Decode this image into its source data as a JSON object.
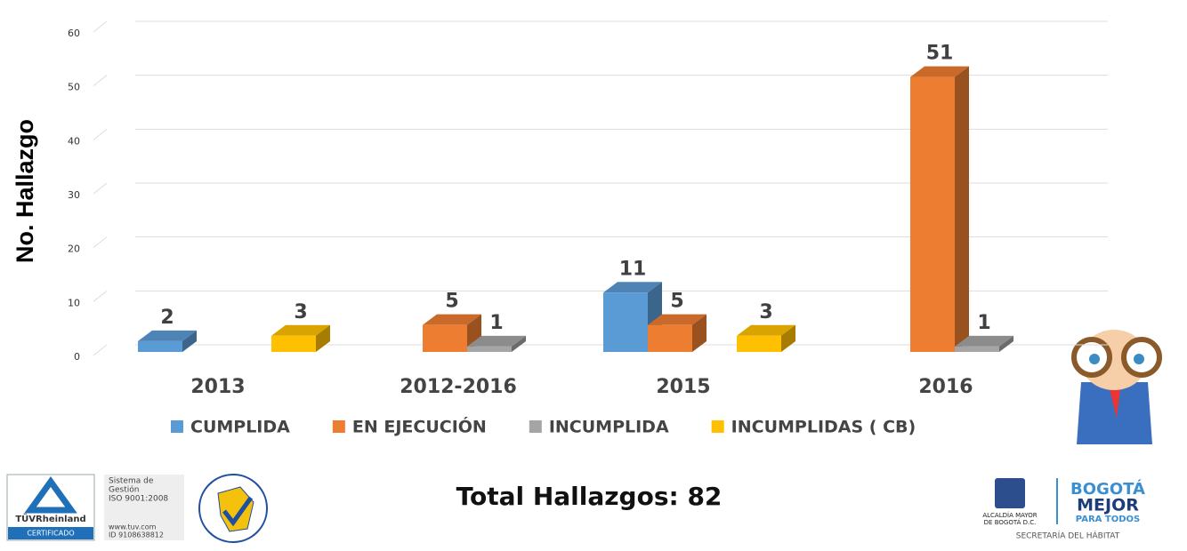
{
  "chart_data": {
    "type": "bar3d",
    "y_label": "No. Hallazgo",
    "categories": [
      "2013",
      "2012-2016",
      "2015",
      "2016"
    ],
    "series": [
      {
        "name": "CUMPLIDA",
        "color": "#5b9bd5",
        "values": [
          2,
          null,
          11,
          null
        ]
      },
      {
        "name": "EN EJECUCIÓN",
        "color": "#ed7d31",
        "values": [
          null,
          5,
          5,
          51
        ]
      },
      {
        "name": "INCUMPLIDA",
        "color": "#a5a5a5",
        "values": [
          null,
          1,
          null,
          1
        ]
      },
      {
        "name": "INCUMPLIDAS ( CB)",
        "color": "#ffc000",
        "values": [
          3,
          null,
          3,
          null
        ]
      }
    ],
    "ylim": [
      0,
      60
    ],
    "yticks": [
      0,
      10,
      20,
      30,
      40,
      50,
      60
    ],
    "grid": true,
    "legend": "bottom"
  },
  "footer": {
    "total": "Total Hallazgos: 82",
    "tuv": {
      "brand": "TÜVRheinland",
      "badge": "CERTIFICADO",
      "system": [
        "Sistema de",
        "Gestión",
        "ISO 9001:2008"
      ],
      "web": [
        "www.tuv.com",
        "ID 9108638812"
      ]
    },
    "bogota": {
      "alcaldia": [
        "ALCALDÍA MAYOR",
        "DE BOGOTÁ D.C."
      ],
      "brand1": "BOGOTÁ",
      "brand2": "MEJOR",
      "brand3": "PARA TODOS",
      "secretaria": "SECRETARÍA DEL HÁBITAT"
    }
  }
}
